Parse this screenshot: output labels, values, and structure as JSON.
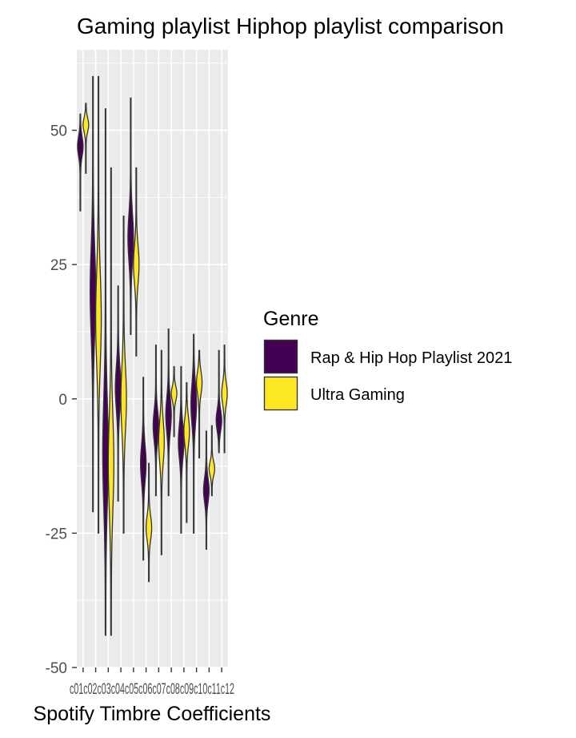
{
  "chart_data": {
    "type": "violin",
    "title": "Gaming playlist Hiphop playlist comparison",
    "xlabel": "Spotify Timbre Coefficients",
    "ylabel": "",
    "ylim": [
      -50,
      65
    ],
    "y_ticks": [
      -50,
      -25,
      0,
      25,
      50
    ],
    "grid": true,
    "legend_placement": "right",
    "legend_title": "Genre",
    "categories": [
      "c01",
      "c02",
      "c03",
      "c04",
      "c05",
      "c06",
      "c07",
      "c08",
      "c09",
      "c10",
      "c11",
      "c12"
    ],
    "x_tick_label_text": "c01c02c03c04c05c06c07c08c09c10c11c12",
    "series": [
      {
        "name": "Rap & Hip Hop Playlist 2021",
        "color": "#440154",
        "ranges": [
          [
            35,
            53
          ],
          [
            -21,
            60
          ],
          [
            -44,
            54
          ],
          [
            -19,
            21
          ],
          [
            12,
            56
          ],
          [
            -30,
            4
          ],
          [
            -18,
            10
          ],
          [
            -18,
            13
          ],
          [
            -25,
            6
          ],
          [
            -25,
            12
          ],
          [
            -28,
            -6
          ],
          [
            -10,
            9
          ]
        ],
        "medians": [
          47,
          20,
          -10,
          2,
          30,
          -12,
          -5,
          -3,
          -8,
          -1,
          -17,
          -4
        ]
      },
      {
        "name": "Ultra Gaming",
        "color": "#FDE725",
        "ranges": [
          [
            42,
            55
          ],
          [
            -25,
            60
          ],
          [
            -44,
            43
          ],
          [
            -25,
            34
          ],
          [
            8,
            43
          ],
          [
            -34,
            -12
          ],
          [
            -29,
            9
          ],
          [
            -7,
            6
          ],
          [
            -23,
            3
          ],
          [
            -11,
            9
          ],
          [
            -18,
            -5
          ],
          [
            -10,
            10
          ]
        ],
        "medians": [
          51,
          15,
          -12,
          0,
          25,
          -24,
          -8,
          1,
          -6,
          3,
          -13,
          1
        ]
      }
    ]
  }
}
